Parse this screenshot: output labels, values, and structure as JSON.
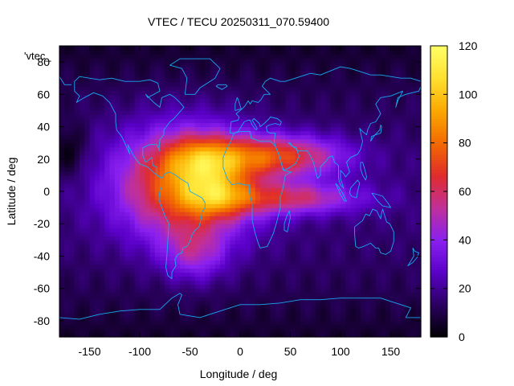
{
  "chart_data": {
    "type": "heatmap",
    "title": "VTEC / TECU 20250311_070.59400",
    "xlabel": "Longitude / deg",
    "ylabel": "Latitude / deg",
    "xlim": [
      -180,
      180
    ],
    "ylim": [
      -90,
      90
    ],
    "x_ticks": [
      "-150",
      "-100",
      "-50",
      "0",
      "50",
      "100",
      "150"
    ],
    "x_tick_values": [
      -150,
      -100,
      -50,
      0,
      50,
      100,
      150
    ],
    "y_ticks": [
      "80",
      "60",
      "40",
      "20",
      "0",
      "-20",
      "-40",
      "-60",
      "-80"
    ],
    "y_tick_values": [
      80,
      60,
      40,
      20,
      0,
      -20,
      -40,
      -60,
      -80
    ],
    "colorbar": {
      "range": [
        0,
        120
      ],
      "ticks": [
        "0",
        "20",
        "40",
        "60",
        "80",
        "100",
        "120"
      ],
      "tick_values": [
        0,
        20,
        40,
        60,
        80,
        100,
        120
      ]
    },
    "key_label": "'vtec_",
    "colormap": [
      "#000000",
      "#2a0060",
      "#5a00c8",
      "#8a20f0",
      "#c0309a",
      "#e02c2c",
      "#f26a00",
      "#fba800",
      "#ffe030",
      "#ffff66"
    ],
    "coastline_color": "#18a8f0",
    "model": {
      "background_tecu": 16,
      "polar_tecu": 6,
      "anomalies": [
        {
          "lon": -55,
          "lat": 5,
          "sigma_lon": 48,
          "sigma_lat": 24,
          "amp": 64
        },
        {
          "lon": -35,
          "lat": 20,
          "sigma_lon": 28,
          "sigma_lat": 10,
          "amp": 32
        },
        {
          "lon": -25,
          "lat": -2,
          "sigma_lon": 24,
          "sigma_lat": 10,
          "amp": 30
        },
        {
          "lon": 40,
          "lat": 22,
          "sigma_lon": 45,
          "sigma_lat": 9,
          "amp": 52
        },
        {
          "lon": 50,
          "lat": -4,
          "sigma_lon": 50,
          "sigma_lat": 7,
          "amp": 40
        },
        {
          "lon": -45,
          "lat": -38,
          "sigma_lon": 22,
          "sigma_lat": 12,
          "amp": 26
        },
        {
          "lon": -170,
          "lat": 25,
          "sigma_lon": 12,
          "sigma_lat": 12,
          "amp": -14
        }
      ]
    }
  }
}
